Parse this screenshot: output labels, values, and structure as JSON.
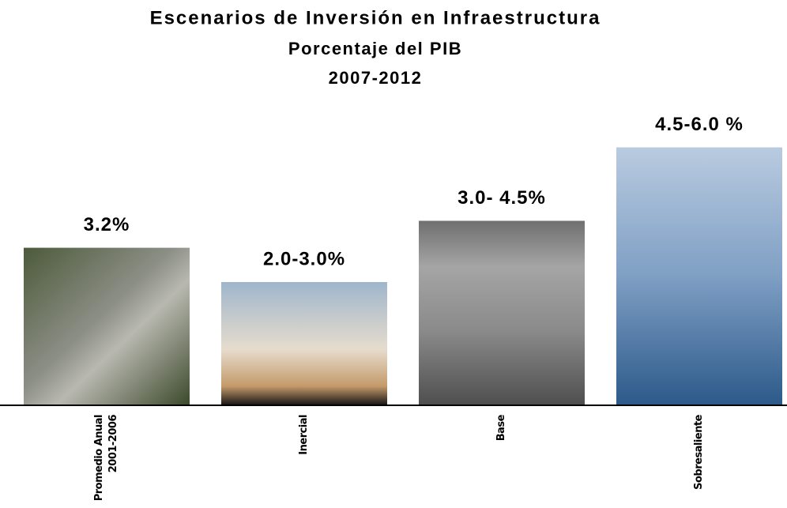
{
  "chart_data": {
    "type": "bar",
    "title": "Escenarios de Inversión en Infraestructura",
    "subtitle": "Porcentaje del PIB",
    "period": "2007-2012",
    "categories": [
      "Promedio Anual 2001-2006",
      "Inercial",
      "Base",
      "Sobresaliente"
    ],
    "low": [
      3.2,
      2.0,
      3.0,
      4.5
    ],
    "high": [
      3.2,
      3.0,
      4.5,
      6.0
    ],
    "value_labels": [
      "3.2%",
      "2.0-3.0%",
      "3.0- 4.5%",
      "4.5-6.0 %"
    ]
  }
}
